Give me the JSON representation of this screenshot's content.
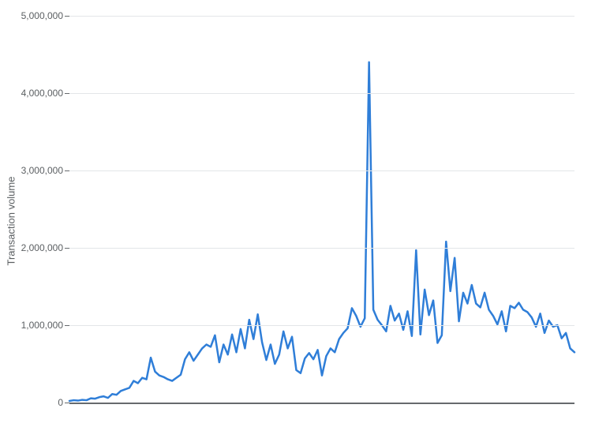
{
  "chart": {
    "type": "line",
    "y_axis_title": "Transaction volume",
    "ylim": [
      0,
      5000000
    ],
    "ytick_step": 1000000,
    "ytick_labels": [
      "0",
      "1,000,000",
      "2,000,000",
      "3,000,000",
      "4,000,000",
      "5,000,000"
    ],
    "line_color": "#2f7ed8",
    "line_width": 2.5,
    "grid_color": "#e3e6e8",
    "axis_color": "#666a6d",
    "tick_font_size": 12,
    "title_font_size": 13,
    "background_color": "#ffffff",
    "series": [
      20000,
      30000,
      25000,
      35000,
      30000,
      55000,
      50000,
      70000,
      80000,
      60000,
      110000,
      100000,
      150000,
      170000,
      190000,
      280000,
      250000,
      320000,
      300000,
      580000,
      400000,
      350000,
      330000,
      300000,
      280000,
      320000,
      360000,
      560000,
      650000,
      540000,
      620000,
      700000,
      750000,
      720000,
      870000,
      520000,
      750000,
      620000,
      880000,
      650000,
      950000,
      700000,
      1070000,
      820000,
      1140000,
      780000,
      550000,
      750000,
      500000,
      620000,
      920000,
      700000,
      850000,
      420000,
      380000,
      570000,
      640000,
      560000,
      680000,
      350000,
      600000,
      700000,
      650000,
      820000,
      900000,
      960000,
      1220000,
      1120000,
      980000,
      1090000,
      4400000,
      1200000,
      1070000,
      1000000,
      920000,
      1250000,
      1060000,
      1150000,
      940000,
      1180000,
      860000,
      1970000,
      880000,
      1460000,
      1130000,
      1320000,
      770000,
      870000,
      2080000,
      1440000,
      1870000,
      1050000,
      1420000,
      1280000,
      1520000,
      1280000,
      1230000,
      1420000,
      1200000,
      1120000,
      1010000,
      1180000,
      920000,
      1250000,
      1220000,
      1290000,
      1200000,
      1170000,
      1100000,
      980000,
      1150000,
      900000,
      1060000,
      980000,
      1000000,
      830000,
      900000,
      700000,
      650000
    ]
  }
}
